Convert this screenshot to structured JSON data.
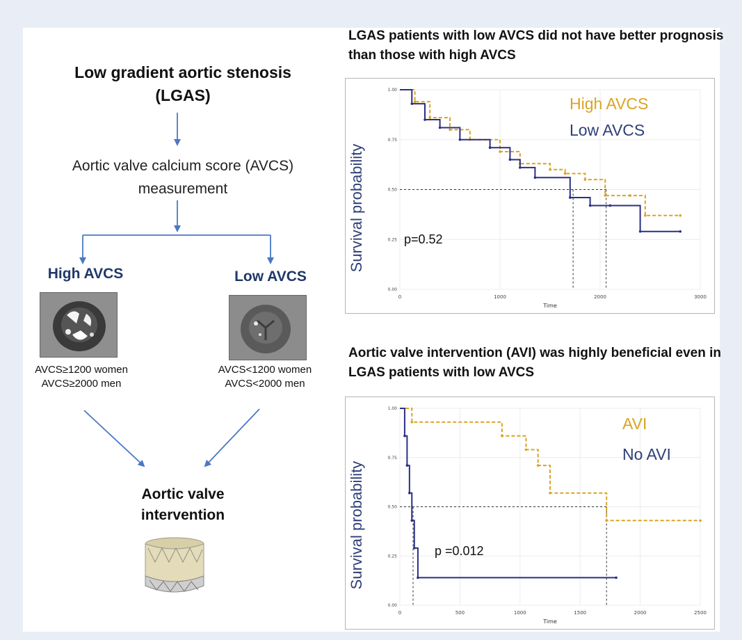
{
  "flowchart": {
    "title": "Low gradient aortic stenosis (LGAS)",
    "step": "Aortic valve calcium score (AVCS) measurement",
    "high_label": "High AVCS",
    "low_label": "Low AVCS",
    "high_criteria_1": "AVCS≥1200 women",
    "high_criteria_2": "AVCS≥2000 men",
    "low_criteria_1": "AVCS<1200 women",
    "low_criteria_2": "AVCS<2000 men",
    "intervention": "Aortic valve intervention"
  },
  "colors": {
    "accent_blue": "#1f3868",
    "gold": "#d9a424",
    "navy": "#2a2f86",
    "arrow": "#4a78c2"
  },
  "chart_data": [
    {
      "type": "line",
      "title": "LGAS patients with low AVCS did not have better prognosis than those with high AVCS",
      "xlabel": "Time",
      "ylabel": "Survival probability",
      "xlim": [
        0,
        3000
      ],
      "ylim": [
        0,
        1
      ],
      "xticks": [
        "0",
        "1000",
        "2000",
        "3000"
      ],
      "yticks": [
        "0.00",
        "0.25",
        "0.50",
        "0.75",
        "1.00"
      ],
      "annotation": "p=0.52",
      "grid": true,
      "series": [
        {
          "name": "High AVCS",
          "color": "#d9a424",
          "style": "dashed",
          "x": [
            0,
            150,
            300,
            500,
            700,
            1000,
            1200,
            1500,
            1650,
            1850,
            2050,
            2300,
            2450,
            2800
          ],
          "y": [
            1.0,
            0.94,
            0.86,
            0.8,
            0.75,
            0.69,
            0.63,
            0.6,
            0.58,
            0.55,
            0.47,
            0.47,
            0.37,
            0.37
          ]
        },
        {
          "name": "Low AVCS",
          "color": "#2a2f86",
          "style": "solid",
          "x": [
            0,
            120,
            250,
            400,
            600,
            900,
            1100,
            1200,
            1350,
            1700,
            1900,
            2100,
            2400,
            2800
          ],
          "y": [
            1.0,
            0.93,
            0.85,
            0.81,
            0.75,
            0.71,
            0.65,
            0.61,
            0.56,
            0.46,
            0.42,
            0.42,
            0.29,
            0.29
          ]
        }
      ],
      "median_lines_x": [
        1730,
        2060
      ]
    },
    {
      "type": "line",
      "title": "Aortic valve intervention (AVI) was highly beneficial even in LGAS patients with low AVCS",
      "xlabel": "Time",
      "ylabel": "Survival probability",
      "xlim": [
        0,
        2500
      ],
      "ylim": [
        0,
        1
      ],
      "xticks": [
        "0",
        "500",
        "1000",
        "1500",
        "2000",
        "2500"
      ],
      "yticks": [
        "0.00",
        "0.25",
        "0.50",
        "0.75",
        "1.00"
      ],
      "annotation": "p =0.012",
      "grid": true,
      "series": [
        {
          "name": "AVI",
          "color": "#d9a424",
          "style": "dashed",
          "x": [
            0,
            100,
            850,
            1050,
            1150,
            1250,
            1720,
            2500
          ],
          "y": [
            1.0,
            0.93,
            0.86,
            0.79,
            0.71,
            0.57,
            0.43,
            0.43
          ]
        },
        {
          "name": "No AVI",
          "color": "#2a2f86",
          "style": "solid",
          "x": [
            0,
            40,
            60,
            80,
            100,
            120,
            150,
            1800
          ],
          "y": [
            1.0,
            0.86,
            0.71,
            0.57,
            0.43,
            0.29,
            0.14,
            0.14
          ]
        }
      ],
      "median_lines_x": [
        110,
        1720
      ]
    }
  ]
}
